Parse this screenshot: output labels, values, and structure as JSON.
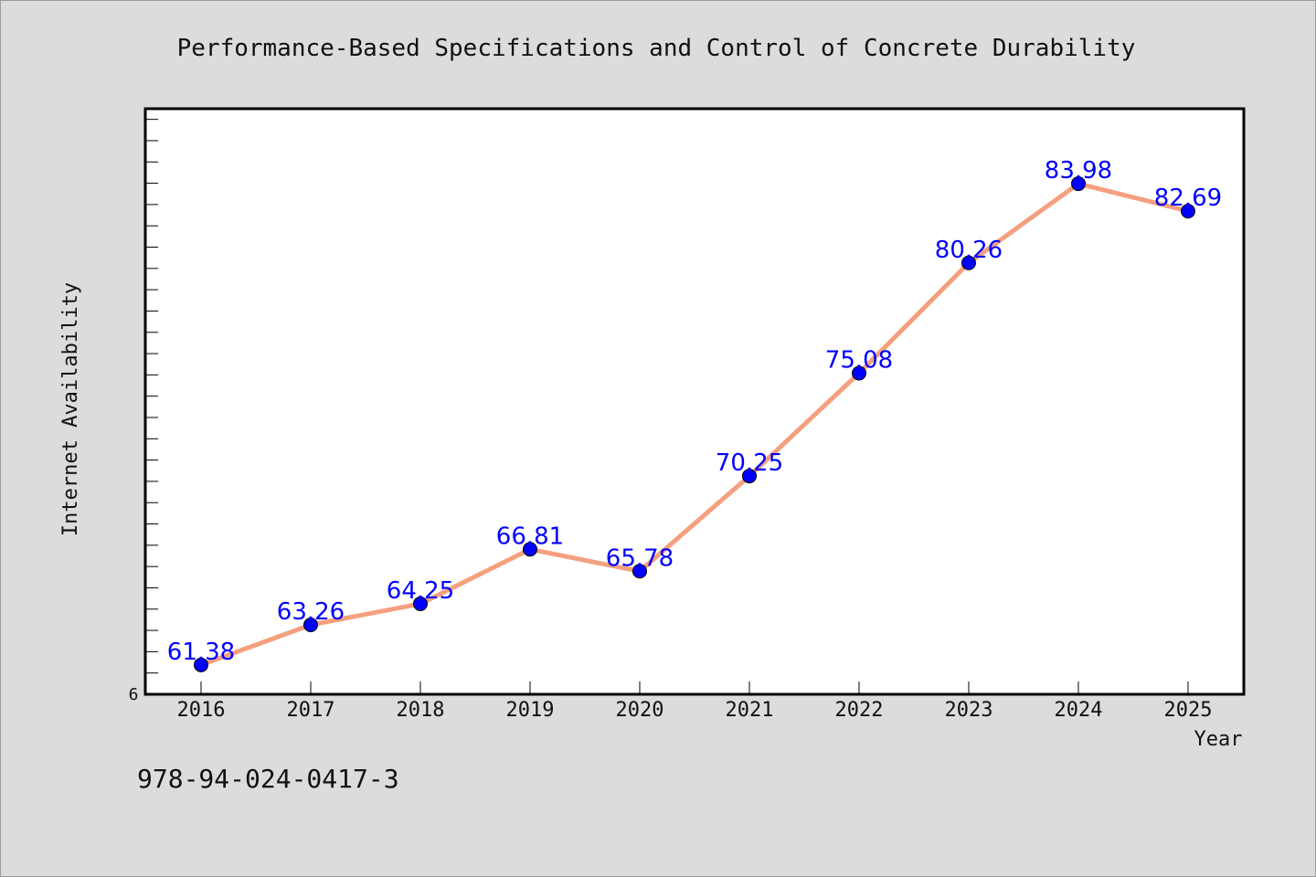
{
  "chart_data": {
    "type": "line",
    "title": "Performance-Based Specifications and Control of Concrete Durability",
    "xlabel": "Year",
    "ylabel": "Internet Availability",
    "categories": [
      "2016",
      "2017",
      "2018",
      "2019",
      "2020",
      "2021",
      "2022",
      "2023",
      "2024",
      "2025"
    ],
    "series": [
      {
        "values": [
          61.38,
          63.26,
          64.25,
          66.81,
          65.78,
          70.25,
          75.08,
          80.26,
          83.98,
          82.69
        ],
        "labels": [
          "61.38",
          "63.26",
          "64.25",
          "66.81",
          "65.78",
          "70.25",
          "75.08",
          "80.26",
          "83.98",
          "82.69"
        ]
      }
    ],
    "ylim": [
      60,
      87.5
    ],
    "y_tick_label": "6",
    "grid": false,
    "colors": {
      "line": "#f4a07f",
      "marker": "#0000ff",
      "data_label": "#0000ff",
      "plot_background": "#ffffff",
      "figure_background": "#dcdcdc"
    }
  },
  "footnote": "978-94-024-0417-3"
}
